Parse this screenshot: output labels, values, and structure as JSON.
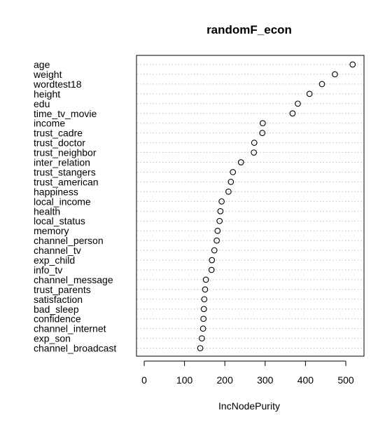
{
  "chart_data": {
    "type": "scatter",
    "title": "randomF_econ",
    "xlabel": "IncNodePurity",
    "ylabel": "",
    "xlim": [
      -5,
      525
    ],
    "xticks": [
      0,
      100,
      200,
      300,
      400,
      500
    ],
    "grid": "dotted-horizontal",
    "categories": [
      "age",
      "weight",
      "wordtest18",
      "height",
      "edu",
      "time_tv_movie",
      "income",
      "trust_cadre",
      "trust_doctor",
      "trust_neighbor",
      "inter_relation",
      "trust_stangers",
      "trust_american",
      "happiness",
      "local_income",
      "health",
      "local_status",
      "memory",
      "channel_person",
      "channel_tv",
      "exp_child",
      "info_tv",
      "channel_message",
      "trust_parents",
      "satisfaction",
      "bad_sleep",
      "confidence",
      "channel_internet",
      "exp_son",
      "channel_broadcast"
    ],
    "values": [
      517,
      473,
      441,
      410,
      381,
      368,
      294,
      293,
      273,
      272,
      240,
      220,
      215,
      209,
      192,
      189,
      187,
      182,
      180,
      174,
      168,
      167,
      153,
      151,
      149,
      148,
      147,
      146,
      143,
      139
    ]
  }
}
